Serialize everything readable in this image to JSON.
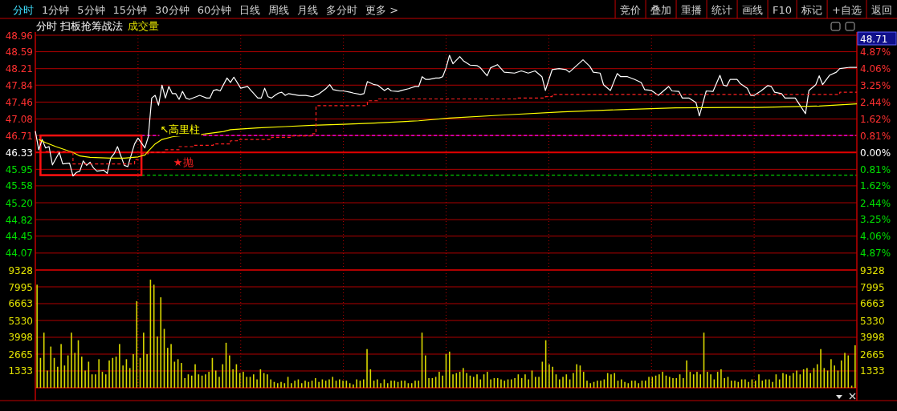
{
  "chart_data": [
    {
      "type": "line",
      "title": "分时 扫板抢筹战法",
      "subtitle": "成交量",
      "annotations": [
        "分时",
        "1分钟",
        "5分钟",
        "15分钟",
        "30分钟",
        "60分钟",
        "日线",
        "周线",
        "月线",
        "多分时",
        "更多 >",
        "竞价",
        "叠加",
        "重播",
        "统计",
        "画线",
        "F10",
        "标记",
        "+自选",
        "返回",
        "48.71",
        {
          "text": "↖高里柱",
          "y": 46.71
        },
        {
          "text": "★抛",
          "y": 46.33
        }
      ],
      "categories": [
        null,
        null,
        null,
        null,
        null,
        null,
        null,
        null,
        null,
        null,
        null,
        null,
        null,
        null,
        null,
        null,
        null,
        null,
        null,
        null,
        null,
        null,
        null,
        null,
        null,
        null,
        null,
        null,
        null,
        null,
        null,
        null,
        null,
        null,
        null,
        null,
        null,
        null,
        null,
        null,
        null,
        null,
        null,
        null,
        null,
        null,
        null,
        null,
        null,
        null,
        null,
        null,
        null,
        null,
        null,
        null,
        null,
        null,
        null,
        null,
        null,
        null,
        null,
        null,
        null,
        null,
        null,
        null,
        null,
        null,
        null,
        null,
        null,
        null,
        null,
        null,
        null,
        null,
        null,
        null,
        null,
        null,
        null,
        null,
        null,
        null,
        null,
        null,
        null,
        null,
        null,
        null,
        null,
        null,
        null,
        null,
        null,
        null,
        null,
        null,
        null,
        null,
        null,
        null,
        null,
        null,
        null,
        null,
        null,
        null,
        null,
        null,
        null,
        null,
        null,
        null,
        null,
        null,
        null,
        null,
        null,
        null,
        null,
        null,
        null,
        null,
        null,
        null,
        null,
        null,
        null,
        null,
        null,
        null,
        null,
        null,
        null,
        null,
        null,
        null,
        null,
        null,
        null,
        null,
        null,
        null,
        null,
        null,
        null,
        null,
        null,
        null,
        null,
        null,
        null,
        null,
        null,
        null,
        null,
        null,
        null,
        null,
        null,
        null,
        null,
        null,
        null,
        null,
        null,
        null,
        null,
        null,
        null,
        null,
        null,
        null,
        null,
        null,
        null,
        null,
        null,
        null,
        null,
        null,
        null,
        null,
        null,
        null,
        null,
        null,
        null,
        null,
        null,
        null,
        null,
        null,
        null,
        null,
        null,
        null,
        null,
        null,
        null,
        null,
        null,
        null,
        null,
        null,
        null,
        null,
        null,
        null,
        null,
        null,
        null,
        null,
        null,
        null,
        null,
        null,
        null,
        null,
        null,
        null,
        null,
        null,
        null,
        null,
        null,
        null,
        null,
        null,
        null,
        null,
        null,
        null,
        null,
        null,
        null,
        null,
        null
      ],
      "ylim": [
        43.69,
        48.96
      ],
      "yticks": [
        48.96,
        48.59,
        48.21,
        47.84,
        47.46,
        47.08,
        46.71,
        46.33,
        45.95,
        45.58,
        {
          "value": 45.2,
          "label": "45.20"
        },
        44.82,
        44.45,
        44.07
      ],
      "y2lim": [
        -5.7,
        5.68
      ],
      "y2ticks": [
        {
          "value": 4.87,
          "label": "4.87%"
        },
        {
          "value": 4.06,
          "label": "4.06%"
        },
        {
          "value": 3.25,
          "label": "3.25%"
        },
        {
          "value": 2.44,
          "label": "2.44%"
        },
        {
          "value": 1.62,
          "label": "1.62%"
        },
        {
          "value": 0.81,
          "label": "0.81%"
        },
        {
          "value": 0,
          "label": "0.00%"
        },
        {
          "value": -0.81,
          "label": "0.81%"
        },
        {
          "value": -1.62,
          "label": "1.62%"
        },
        {
          "value": -2.44,
          "label": "2.44%"
        },
        {
          "value": -3.25,
          "label": "3.25%"
        },
        {
          "value": -4.06,
          "label": "4.06%"
        },
        {
          "value": -4.87,
          "label": "4.87%"
        }
      ],
      "grid": true,
      "tick_labels": "y",
      "ref_lines": [
        {
          "axis": "y2",
          "value": 0,
          "color": "#e00000",
          "line_style": "solid"
        },
        {
          "axis": "y",
          "value": 46.71,
          "color": "#ff00ff",
          "line_style": "dashed"
        },
        {
          "axis": "y",
          "value": 45.82,
          "color": "#00d000",
          "line_style": "dashed"
        }
      ],
      "series": [
        {
          "color": "#ffffff",
          "values": [
            46.81,
            46.39,
            46.62,
            46.43,
            46.46,
            46.05,
            null,
            46.33,
            46.07,
            null,
            46.09,
            45.8,
            45.88,
            45.91,
            46.14,
            46.04,
            46.11,
            45.98,
            45.91,
            null,
            45.93,
            45.86,
            46.2,
            46.3,
            46.46,
            46.25,
            46.04,
            46.01,
            46.27,
            46.52,
            46.65,
            null,
            46.43,
            46.68,
            47.55,
            47.61,
            47.39,
            47.84,
            47.55,
            47.81,
            47.65,
            47.65,
            47.52,
            47.7,
            47.55,
            47.52,
            null,
            47.58,
            47.61,
            null,
            47.55,
            47.55,
            47.72,
            47.74,
            47.71,
            null,
            48.0,
            47.9,
            48.02,
            null,
            47.77,
            null,
            47.81,
            47.72,
            null,
            47.55,
            47.55,
            47.77,
            47.58,
            47.55,
            47.61,
            47.66,
            47.68,
            47.61,
            47.65,
            null,
            null,
            47.61,
            null,
            47.61,
            null,
            47.58,
            null,
            47.65,
            null,
            47.77,
            47.85,
            47.74,
            null,
            47.71,
            47.71,
            null,
            47.68,
            47.66,
            null,
            47.63,
            47.65,
            47.92,
            null,
            47.85,
            47.84,
            null,
            47.72,
            47.77,
            47.71,
            null,
            47.7,
            47.72,
            null,
            47.76,
            null,
            47.81,
            47.81,
            48.03,
            47.97,
            47.97,
            null,
            48.0,
            48.0,
            48.03,
            48.23,
            48.51,
            48.32,
            null,
            48.48,
            48.39,
            null,
            48.29,
            null,
            48.28,
            48.23,
            null,
            48.05,
            48.23,
            null,
            48.3,
            null,
            48.13,
            null,
            null,
            48.11,
            null,
            48.16,
            null,
            48.11,
            null,
            48.16,
            null,
            48.03,
            47.72,
            null,
            48.19,
            null,
            48.21,
            null,
            48.19,
            48.13,
            null,
            null,
            null,
            48.41,
            null,
            48.26,
            48.13,
            null,
            48.11,
            47.85,
            null,
            47.72,
            null,
            48.1,
            48.03,
            null,
            48.03,
            null,
            47.97,
            null,
            47.9,
            47.74,
            null,
            47.72,
            null,
            47.61,
            null,
            null,
            47.81,
            47.71,
            null,
            47.7,
            47.55,
            null,
            47.55,
            null,
            47.45,
            47.15,
            null,
            47.71,
            null,
            47.7,
            null,
            48.06,
            47.84,
            47.82,
            47.97,
            null,
            47.97,
            47.87,
            null,
            47.77,
            47.61,
            47.61,
            null,
            47.71,
            null,
            47.83,
            47.81,
            47.68,
            null,
            47.65,
            47.55,
            null,
            null,
            47.55,
            null,
            null,
            47.2,
            47.72,
            null,
            47.85,
            48.05,
            47.85,
            null,
            48.06,
            null,
            48.13,
            48.21,
            null,
            null,
            48.24,
            null,
            48.24
          ]
        },
        {
          "color": "#ffff00",
          "values": [
            null,
            46.62,
            null,
            46.55,
            null,
            null,
            46.46,
            null,
            null,
            null,
            null,
            46.33,
            null,
            46.25,
            null,
            null,
            46.22,
            null,
            null,
            null,
            null,
            null,
            46.2,
            null,
            null,
            null,
            46.2,
            null,
            null,
            null,
            46.23,
            null,
            46.27,
            46.36,
            null,
            46.52,
            null,
            46.62,
            null,
            null,
            46.68,
            null,
            null,
            null,
            46.72,
            null,
            null,
            null,
            46.73,
            null,
            null,
            null,
            null,
            null,
            null,
            46.8,
            null,
            46.84,
            null,
            null,
            null,
            null,
            null,
            null,
            null,
            46.88,
            null,
            null,
            null,
            null,
            null,
            null,
            null,
            46.91,
            null,
            null,
            null,
            null,
            null,
            null,
            null,
            46.94,
            null,
            null,
            null,
            null,
            null,
            null,
            null,
            null,
            46.96,
            null,
            null,
            null,
            null,
            null,
            null,
            null,
            null,
            46.99,
            null,
            null,
            null,
            null,
            null,
            null,
            null,
            null,
            null,
            null,
            null,
            null,
            47.04,
            null,
            null,
            null,
            null,
            null,
            null,
            null,
            null,
            47.1,
            null,
            null,
            null,
            null,
            null,
            null,
            null,
            null,
            null,
            null,
            null,
            null,
            null,
            null,
            null,
            47.17,
            null,
            null,
            null,
            null,
            null,
            null,
            null,
            null,
            null,
            null,
            null,
            null,
            null,
            null,
            null,
            null,
            47.24,
            null,
            null,
            null,
            null,
            null,
            null,
            null,
            null,
            null,
            null,
            null,
            null,
            null,
            null,
            null,
            null,
            47.29,
            null,
            null,
            null,
            null,
            null,
            null,
            null,
            null,
            null,
            null,
            null,
            null,
            null,
            null,
            null,
            47.33,
            null,
            null,
            null,
            null,
            null,
            null,
            null,
            null,
            null,
            null,
            null,
            null,
            null,
            null,
            null,
            null,
            47.34,
            null,
            null,
            null,
            null,
            null,
            null,
            47.34,
            null,
            null,
            null,
            null,
            null,
            null,
            null,
            null,
            null,
            null,
            null,
            null,
            null,
            null,
            null,
            null,
            null,
            47.37,
            null,
            null,
            null,
            null,
            null,
            null,
            null,
            null,
            null,
            null,
            47.42
          ]
        },
        {
          "type": "step",
          "color": "#ff2020",
          "line_style": "dashed",
          "values": [
            null,
            null,
            null,
            46.35,
            null,
            null,
            null,
            null,
            null,
            null,
            46.35,
            46.07,
            null,
            null,
            null,
            null,
            null,
            null,
            null,
            null,
            null,
            null,
            null,
            null,
            null,
            46.07,
            null,
            null,
            null,
            46.17,
            null,
            46.3,
            null,
            46.33,
            null,
            null,
            null,
            null,
            46.39,
            null,
            null,
            null,
            46.46,
            null,
            null,
            null,
            46.49,
            null,
            null,
            null,
            null,
            null,
            46.52,
            null,
            null,
            null,
            null,
            46.59,
            null,
            46.62,
            null,
            null,
            null,
            null,
            null,
            null,
            null,
            null,
            null,
            46.67,
            null,
            null,
            null,
            null,
            null,
            46.7,
            null,
            null,
            null,
            null,
            null,
            46.75,
            47.38,
            null,
            null,
            null,
            null,
            null,
            null,
            null,
            null,
            null,
            null,
            null,
            null,
            null,
            47.38,
            47.49,
            null,
            null,
            47.53,
            null,
            null,
            null,
            null,
            null,
            null,
            null,
            null,
            null,
            null,
            null,
            null,
            null,
            null,
            null,
            null,
            null,
            null,
            null,
            null,
            null,
            null,
            null,
            null,
            null,
            null,
            null,
            null,
            null,
            null,
            null,
            null,
            null,
            null,
            null,
            null,
            null,
            null,
            null,
            47.53,
            47.55,
            null,
            null,
            null,
            null,
            null,
            null,
            null,
            47.58,
            null,
            47.63,
            null,
            null,
            null,
            null,
            null,
            null,
            null,
            null,
            null,
            null,
            null,
            null,
            null,
            null,
            null,
            null,
            null,
            null,
            null,
            null,
            null,
            null,
            null,
            null,
            null,
            null,
            null,
            null,
            null,
            null,
            null,
            null,
            null,
            null,
            null,
            null,
            null,
            null,
            null,
            null,
            null,
            null,
            null,
            null,
            null,
            null,
            null,
            null,
            null,
            null,
            null,
            null,
            null,
            null,
            null,
            null,
            null,
            null,
            null,
            null,
            null,
            null,
            null,
            null,
            null,
            null,
            null,
            null,
            null,
            null,
            null,
            null,
            null,
            null,
            null,
            null,
            null,
            null,
            null,
            null,
            null,
            null,
            47.63,
            47.68,
            null,
            null,
            null,
            null,
            47.68
          ]
        }
      ]
    },
    {
      "type": "bar",
      "color": "#d8d800",
      "grid": true,
      "tick_labels": "y",
      "ylim": [
        0,
        9328
      ],
      "yticks": [
        1333,
        2665,
        3998,
        5330,
        6663,
        7995,
        9328
      ],
      "y2lim": [
        0,
        9328
      ],
      "y2ticks": [
        1333,
        2665,
        3998,
        5330,
        6663,
        7995,
        9328
      ],
      "categories": [
        null,
        null,
        null,
        null,
        null,
        null,
        null,
        null,
        null,
        null,
        null,
        null,
        null,
        null,
        null,
        null,
        null,
        null,
        null,
        null,
        null,
        null,
        null,
        null,
        null,
        null,
        null,
        null,
        null,
        null,
        null,
        null,
        null,
        null,
        null,
        null,
        null,
        null,
        null,
        null,
        null,
        null,
        null,
        null,
        null,
        null,
        null,
        null,
        null,
        null,
        null,
        null,
        null,
        null,
        null,
        null,
        null,
        null,
        null,
        null,
        null,
        null,
        null,
        null,
        null,
        null,
        null,
        null,
        null,
        null,
        null,
        null,
        null,
        null,
        null,
        null,
        null,
        null,
        null,
        null,
        null,
        null,
        null,
        null,
        null,
        null,
        null,
        null,
        null,
        null,
        null,
        null,
        null,
        null,
        null,
        null,
        null,
        null,
        null,
        null,
        null,
        null,
        null,
        null,
        null,
        null,
        null,
        null,
        null,
        null,
        null,
        null,
        null,
        null,
        null,
        null,
        null,
        null,
        null,
        null,
        null,
        null,
        null,
        null,
        null,
        null,
        null,
        null,
        null,
        null,
        null,
        null,
        null,
        null,
        null,
        null,
        null,
        null,
        null,
        null,
        null,
        null,
        null,
        null,
        null,
        null,
        null,
        null,
        null,
        null,
        null,
        null,
        null,
        null,
        null,
        null,
        null,
        null,
        null,
        null,
        null,
        null,
        null,
        null,
        null,
        null,
        null,
        null,
        null,
        null,
        null,
        null,
        null,
        null,
        null,
        null,
        null,
        null,
        null,
        null,
        null,
        null,
        null,
        null,
        null,
        null,
        null,
        null,
        null,
        null,
        null,
        null,
        null,
        null,
        null,
        null,
        null,
        null,
        null,
        null,
        null,
        null,
        null,
        null,
        null,
        null,
        null,
        null,
        null,
        null,
        null,
        null,
        null,
        null,
        null,
        null,
        null,
        null,
        null,
        null,
        null,
        null,
        null,
        null,
        null,
        null,
        null,
        null,
        null,
        null,
        null,
        null,
        null,
        null,
        null,
        null,
        null,
        null,
        null
      ],
      "values": [
        8100,
        2300,
        4300,
        1300,
        3200,
        2300,
        1600,
        3400,
        1700,
        2500,
        4300,
        2700,
        3700,
        2400,
        1300,
        2000,
        1000,
        1000,
        2200,
        1200,
        1000,
        2100,
        2300,
        2400,
        3400,
        1700,
        2200,
        1500,
        2600,
        6800,
        2300,
        4300,
        2600,
        8500,
        8100,
        4000,
        7100,
        4600,
        3100,
        3400,
        2000,
        2200,
        1900,
        700,
        1000,
        900,
        1800,
        1000,
        900,
        1000,
        1200,
        2300,
        1300,
        800,
        1800,
        3500,
        2500,
        1400,
        1800,
        1100,
        1200,
        800,
        800,
        1000,
        600,
        1400,
        1100,
        1000,
        600,
        400,
        300,
        400,
        300,
        800,
        300,
        500,
        600,
        300,
        500,
        400,
        500,
        700,
        400,
        600,
        500,
        600,
        800,
        500,
        600,
        500,
        500,
        300,
        200,
        600,
        500,
        600,
        3000,
        1400,
        500,
        600,
        300,
        600,
        300,
        500,
        500,
        400,
        500,
        500,
        300,
        300,
        500,
        500,
        4300,
        2500,
        700,
        700,
        800,
        1200,
        900,
        2600,
        2800,
        1000,
        1100,
        1200,
        1500,
        1100,
        900,
        800,
        1000,
        600,
        1000,
        1200,
        600,
        700,
        700,
        600,
        500,
        600,
        600,
        700,
        1000,
        700,
        1000,
        600,
        1300,
        800,
        800,
        2000,
        3700,
        1800,
        1600,
        1000,
        600,
        800,
        1000,
        600,
        1100,
        1800,
        1700,
        1200,
        500,
        300,
        400,
        500,
        500,
        600,
        1100,
        1000,
        1100,
        500,
        600,
        400,
        300,
        500,
        500,
        300,
        500,
        500,
        800,
        800,
        900,
        1000,
        1200,
        900,
        800,
        700,
        700,
        1000,
        700,
        2100,
        1200,
        1000,
        1200,
        1000,
        4300,
        1200,
        1000,
        600,
        1200,
        1400,
        700,
        800,
        500,
        500,
        400,
        600,
        600,
        400,
        600,
        500,
        1000,
        500,
        600,
        600,
        400,
        1000,
        600,
        1100,
        1000,
        900,
        1100,
        1300,
        1000,
        1400,
        1500,
        1100,
        1500,
        1800,
        3000,
        1500,
        1300,
        2200,
        1700,
        1300,
        2100,
        2700,
        2500,
        100,
        3300
      ]
    }
  ]
}
